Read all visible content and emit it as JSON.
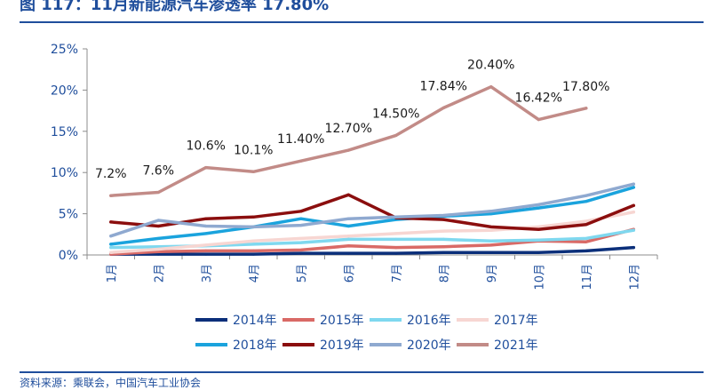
{
  "header": {
    "title": "图 117：11月新能源汽车渗透率 17.80%"
  },
  "footer": {
    "source": "资料来源：乘联会，中国汽车工业协会"
  },
  "chart_data": {
    "type": "line",
    "title": "",
    "xlabel": "",
    "ylabel": "",
    "x": [
      "1月",
      "2月",
      "3月",
      "4月",
      "5月",
      "6月",
      "7月",
      "8月",
      "9月",
      "10月",
      "11月",
      "12月"
    ],
    "ylim": [
      0,
      25
    ],
    "yticks": [
      0,
      5,
      10,
      15,
      20,
      25
    ],
    "ytick_labels": [
      "0%",
      "5%",
      "10%",
      "15%",
      "20%",
      "25%"
    ],
    "grid": false,
    "legend_position": "bottom",
    "series": [
      {
        "name": "2014年",
        "color": "#0b2f7a",
        "values": [
          0.1,
          0.1,
          0.1,
          0.1,
          0.2,
          0.2,
          0.2,
          0.3,
          0.3,
          0.3,
          0.5,
          0.9
        ]
      },
      {
        "name": "2015年",
        "color": "#d96a66",
        "values": [
          0.1,
          0.4,
          0.5,
          0.5,
          0.6,
          1.1,
          0.9,
          1.0,
          1.2,
          1.7,
          1.6,
          3.1
        ]
      },
      {
        "name": "2016年",
        "color": "#7fd8ef",
        "values": [
          0.9,
          1.0,
          1.1,
          1.3,
          1.5,
          1.9,
          1.9,
          1.9,
          1.7,
          1.8,
          2.0,
          3.0
        ]
      },
      {
        "name": "2017年",
        "color": "#f7d6d2",
        "values": [
          0.3,
          0.7,
          1.2,
          1.7,
          2.0,
          2.3,
          2.6,
          2.9,
          3.0,
          3.4,
          4.1,
          5.2
        ]
      },
      {
        "name": "2018年",
        "color": "#1aa3dd",
        "values": [
          1.3,
          2.0,
          2.6,
          3.4,
          4.4,
          3.5,
          4.3,
          4.7,
          5.0,
          5.7,
          6.5,
          8.2
        ]
      },
      {
        "name": "2019年",
        "color": "#8b0e0e",
        "values": [
          4.0,
          3.5,
          4.4,
          4.6,
          5.3,
          7.3,
          4.5,
          4.3,
          3.4,
          3.1,
          3.7,
          6.0
        ]
      },
      {
        "name": "2020年",
        "color": "#8fa9d0",
        "values": [
          2.3,
          4.2,
          3.5,
          3.4,
          3.6,
          4.4,
          4.6,
          4.8,
          5.3,
          6.1,
          7.2,
          8.6
        ]
      },
      {
        "name": "2021年",
        "color": "#c28b87",
        "values": [
          7.2,
          7.6,
          10.6,
          10.1,
          11.4,
          12.7,
          14.5,
          17.84,
          20.4,
          16.42,
          17.8,
          null
        ],
        "labels": [
          "7.2%",
          "7.6%",
          "10.6%",
          "10.1%",
          "11.40%",
          "12.70%",
          "14.50%",
          "17.84%",
          "20.40%",
          "16.42%",
          "17.80%",
          null
        ]
      }
    ]
  }
}
